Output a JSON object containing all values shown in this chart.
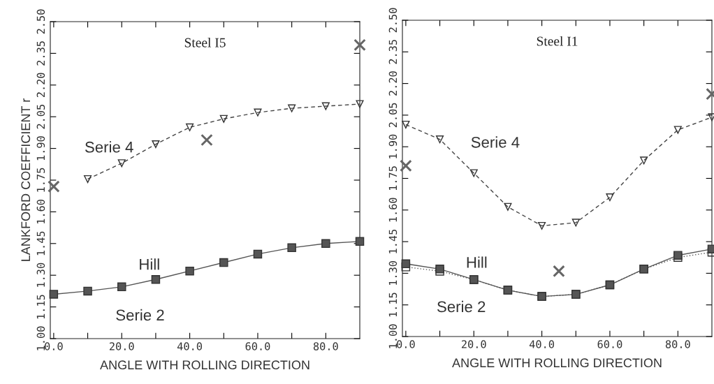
{
  "chart_data": [
    {
      "type": "line",
      "title": "Steel I5",
      "xlabel": "ANGLE WITH ROLLING DIRECTION",
      "ylabel": "LANKFORD COEFFICIENT r",
      "x": [
        0,
        10,
        20,
        30,
        40,
        50,
        60,
        70,
        80,
        90
      ],
      "series": [
        {
          "color": "#555555",
          "marker": "square",
          "line_style": "solid",
          "values": [
            1.21,
            1.225,
            1.245,
            1.28,
            1.32,
            1.36,
            1.4,
            1.43,
            1.45,
            1.46
          ]
        },
        {
          "color": "#444444",
          "marker": "triangle",
          "line_style": "dashed",
          "values": [
            null,
            1.755,
            1.83,
            1.92,
            2.0,
            2.04,
            2.07,
            2.09,
            2.1,
            2.11
          ]
        },
        {
          "type": "scatter",
          "color": "#666666",
          "marker": "cross",
          "x": [
            0,
            45,
            90
          ],
          "values": [
            1.72,
            1.94,
            2.39
          ]
        }
      ],
      "annotations": [
        "Serie 4",
        "Hill",
        "Serie 2"
      ],
      "xlim": [
        -1,
        90
      ],
      "ylim": [
        1.0,
        2.5
      ],
      "xticks": [
        {
          "value": 0,
          "label": "0.0"
        },
        {
          "value": 10,
          "label": null
        },
        {
          "value": 20,
          "label": "20.0"
        },
        {
          "value": 30,
          "label": null
        },
        {
          "value": 40,
          "label": "40.0"
        },
        {
          "value": 50,
          "label": null
        },
        {
          "value": 60,
          "label": "60.0"
        },
        {
          "value": 70,
          "label": null
        },
        {
          "value": 80,
          "label": "80.0"
        }
      ],
      "yticks": [
        {
          "value": 1.0,
          "label": "1.00"
        },
        {
          "value": 1.15,
          "label": "1.15"
        },
        {
          "value": 1.3,
          "label": "1.30"
        },
        {
          "value": 1.45,
          "label": "1.45"
        },
        {
          "value": 1.6,
          "label": "1.60"
        },
        {
          "value": 1.75,
          "label": "1.75"
        },
        {
          "value": 1.9,
          "label": "1.90"
        },
        {
          "value": 2.05,
          "label": "2.05"
        },
        {
          "value": 2.2,
          "label": "2.20"
        },
        {
          "value": 2.35,
          "label": "2.35"
        },
        {
          "value": 2.5,
          "label": "2.50"
        }
      ],
      "grid": false,
      "legend": false
    },
    {
      "type": "line",
      "title": "Steel I1",
      "xlabel": "ANGLE WITH ROLLING DIRECTION",
      "x": [
        0,
        10,
        20,
        30,
        40,
        50,
        60,
        70,
        80,
        90
      ],
      "series": [
        {
          "color": "#555555",
          "marker": "square",
          "line_style": "dotted",
          "values": [
            1.33,
            1.31,
            1.27,
            1.22,
            1.19,
            1.2,
            1.245,
            1.32,
            1.375,
            1.4
          ]
        },
        {
          "color": "#555555",
          "marker": "square",
          "line_style": "solid",
          "values": [
            1.345,
            1.32,
            1.27,
            1.22,
            1.19,
            1.2,
            1.245,
            1.32,
            1.385,
            1.415
          ]
        },
        {
          "color": "#444444",
          "marker": "triangle",
          "line_style": "dashed",
          "values": [
            2.005,
            1.935,
            1.775,
            1.615,
            1.525,
            1.54,
            1.66,
            1.835,
            1.98,
            2.04
          ]
        },
        {
          "type": "scatter",
          "color": "#666666",
          "marker": "cross",
          "x": [
            0,
            45,
            90
          ],
          "values": [
            1.81,
            1.31,
            2.15
          ]
        }
      ],
      "annotations": [
        "Serie 4",
        "Hill",
        "Serie 2"
      ],
      "xlim": [
        -1,
        90
      ],
      "ylim": [
        1.0,
        2.5
      ],
      "xticks": [
        {
          "value": 0,
          "label": "0.0"
        },
        {
          "value": 10,
          "label": null
        },
        {
          "value": 20,
          "label": "20.0"
        },
        {
          "value": 30,
          "label": null
        },
        {
          "value": 40,
          "label": "40.0"
        },
        {
          "value": 50,
          "label": null
        },
        {
          "value": 60,
          "label": "60.0"
        },
        {
          "value": 70,
          "label": null
        },
        {
          "value": 80,
          "label": "80.0"
        }
      ],
      "yticks": [
        {
          "value": 1.0,
          "label": "1.00"
        },
        {
          "value": 1.15,
          "label": "1.15"
        },
        {
          "value": 1.3,
          "label": "1.30"
        },
        {
          "value": 1.45,
          "label": "1.45"
        },
        {
          "value": 1.6,
          "label": "1.60"
        },
        {
          "value": 1.75,
          "label": "1.75"
        },
        {
          "value": 1.9,
          "label": "1.90"
        },
        {
          "value": 2.05,
          "label": "2.05"
        },
        {
          "value": 2.2,
          "label": "2.20"
        },
        {
          "value": 2.35,
          "label": "2.35"
        },
        {
          "value": 2.5,
          "label": "2.50"
        }
      ],
      "grid": false,
      "legend": false
    }
  ]
}
